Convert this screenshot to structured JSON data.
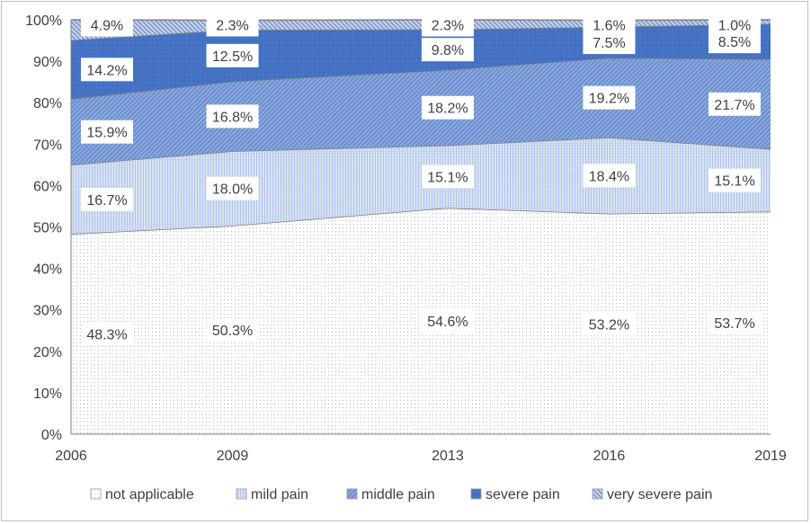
{
  "chart_data": {
    "type": "area",
    "stacked": true,
    "percent": true,
    "x": [
      "2006",
      "2009",
      "2013",
      "2016",
      "2019"
    ],
    "x_numeric": [
      2006,
      2009,
      2013,
      2016,
      2019
    ],
    "ylim": [
      0,
      100
    ],
    "yticks": [
      "0%",
      "10%",
      "20%",
      "30%",
      "40%",
      "50%",
      "60%",
      "70%",
      "80%",
      "90%",
      "100%"
    ],
    "grid": false,
    "legend_position": "bottom",
    "series": [
      {
        "name": "not applicable",
        "values": [
          48.3,
          50.3,
          54.6,
          53.2,
          53.7
        ],
        "labels": [
          "48.3%",
          "50.3%",
          "54.6%",
          "53.2%",
          "53.7%"
        ],
        "color": "#f2f2f2"
      },
      {
        "name": "mild pain",
        "values": [
          16.7,
          18.0,
          15.1,
          18.4,
          15.1
        ],
        "labels": [
          "16.7%",
          "18.0%",
          "15.1%",
          "18.4%",
          "15.1%"
        ],
        "color": "#cfdcf2"
      },
      {
        "name": "middle pain",
        "values": [
          15.9,
          16.8,
          18.2,
          19.2,
          21.7
        ],
        "labels": [
          "15.9%",
          "16.8%",
          "18.2%",
          "19.2%",
          "21.7%"
        ],
        "color": "#8aa8dc"
      },
      {
        "name": "severe pain",
        "values": [
          14.2,
          12.5,
          9.8,
          7.5,
          8.5
        ],
        "labels": [
          "14.2%",
          "12.5%",
          "9.8%",
          "7.5%",
          "8.5%"
        ],
        "color": "#4472c4"
      },
      {
        "name": "very severe pain",
        "values": [
          4.9,
          2.3,
          2.3,
          1.6,
          1.0
        ],
        "labels": [
          "4.9%",
          "2.3%",
          "2.3%",
          "1.6%",
          "1.0%"
        ],
        "color": "#a9b8d6"
      }
    ]
  }
}
